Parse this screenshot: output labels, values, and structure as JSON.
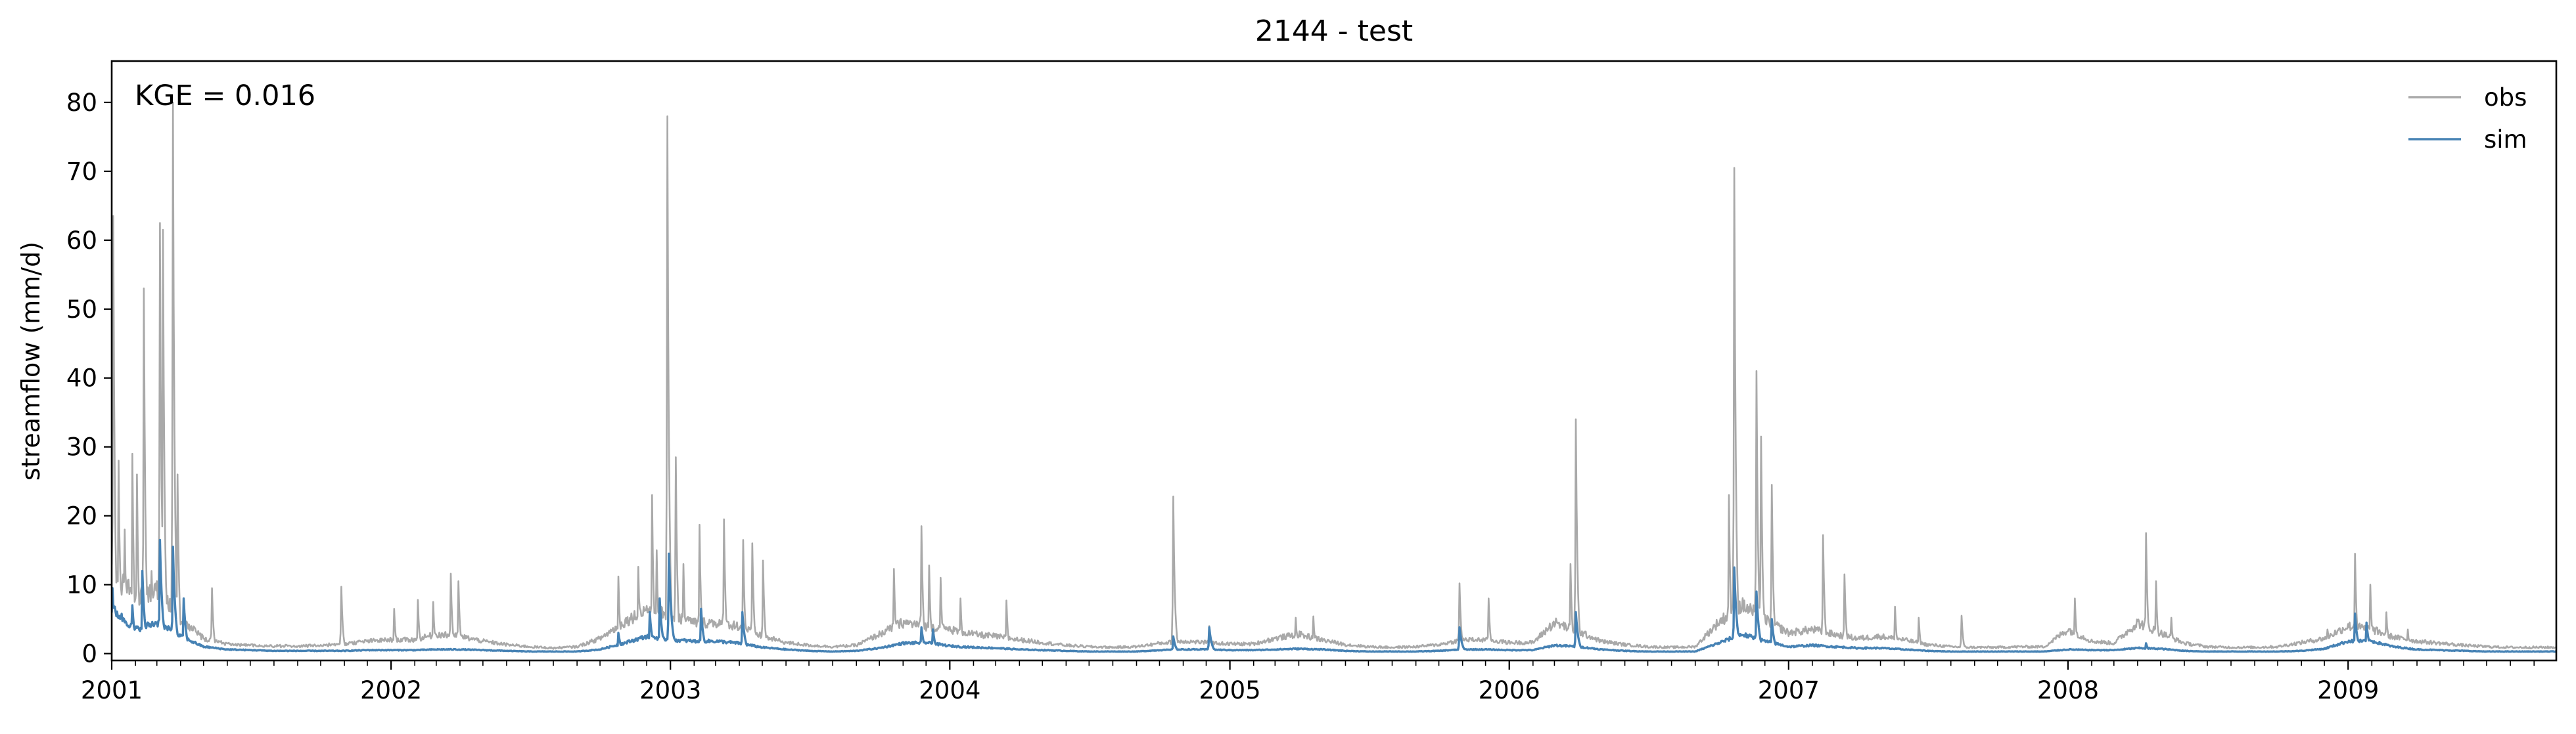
{
  "chart_data": {
    "type": "line",
    "title": "2144 - test",
    "xlabel": "",
    "ylabel": "streamflow (mm/d)",
    "annotation": "KGE = 0.016",
    "xlim": [
      "2001-01-01",
      "2009-09-30"
    ],
    "ylim": [
      -1,
      86
    ],
    "yticks": [
      0,
      10,
      20,
      30,
      40,
      50,
      60,
      70,
      80
    ],
    "xticks": [
      "2001",
      "2002",
      "2003",
      "2004",
      "2005",
      "2006",
      "2007",
      "2008",
      "2009"
    ],
    "grid": false,
    "legend_position": "top-right",
    "colors": {
      "obs": "#a9a9a9",
      "sim": "#4682b4"
    },
    "base_obs": [
      [
        "2001-01-01",
        12
      ],
      [
        "2001-02-01",
        8
      ],
      [
        "2001-03-01",
        9
      ],
      [
        "2001-04-01",
        5
      ],
      [
        "2001-05-01",
        2.2
      ],
      [
        "2001-06-01",
        1.4
      ],
      [
        "2001-07-01",
        1.2
      ],
      [
        "2001-08-01",
        1.1
      ],
      [
        "2001-09-01",
        1.1
      ],
      [
        "2001-10-01",
        1.2
      ],
      [
        "2001-11-01",
        1.4
      ],
      [
        "2001-12-01",
        1.8
      ],
      [
        "2002-01-01",
        2.0
      ],
      [
        "2002-02-01",
        2.0
      ],
      [
        "2002-03-01",
        2.8
      ],
      [
        "2002-04-01",
        2.5
      ],
      [
        "2002-05-01",
        1.8
      ],
      [
        "2002-06-01",
        1.3
      ],
      [
        "2002-07-01",
        1.0
      ],
      [
        "2002-08-01",
        0.8
      ],
      [
        "2002-09-01",
        1.0
      ],
      [
        "2002-10-01",
        2.2
      ],
      [
        "2002-11-01",
        4.5
      ],
      [
        "2002-12-01",
        6.5
      ],
      [
        "2003-01-01",
        5.5
      ],
      [
        "2003-02-01",
        4.5
      ],
      [
        "2003-03-01",
        4.5
      ],
      [
        "2003-04-01",
        4.0
      ],
      [
        "2003-05-01",
        2.5
      ],
      [
        "2003-06-01",
        1.6
      ],
      [
        "2003-07-01",
        1.2
      ],
      [
        "2003-08-01",
        1.0
      ],
      [
        "2003-09-01",
        1.2
      ],
      [
        "2003-10-01",
        2.8
      ],
      [
        "2003-11-01",
        4.5
      ],
      [
        "2003-12-01",
        4.0
      ],
      [
        "2004-01-01",
        3.5
      ],
      [
        "2004-02-01",
        2.8
      ],
      [
        "2004-03-01",
        2.5
      ],
      [
        "2004-04-01",
        2.0
      ],
      [
        "2004-05-01",
        1.6
      ],
      [
        "2004-06-01",
        1.2
      ],
      [
        "2004-07-01",
        1.0
      ],
      [
        "2004-08-01",
        0.9
      ],
      [
        "2004-09-01",
        1.0
      ],
      [
        "2004-10-01",
        1.5
      ],
      [
        "2004-11-01",
        1.8
      ],
      [
        "2004-12-01",
        1.6
      ],
      [
        "2005-01-01",
        1.4
      ],
      [
        "2005-02-01",
        1.4
      ],
      [
        "2005-03-01",
        2.2
      ],
      [
        "2005-04-01",
        2.8
      ],
      [
        "2005-05-01",
        2.0
      ],
      [
        "2005-06-01",
        1.3
      ],
      [
        "2005-07-01",
        1.0
      ],
      [
        "2005-08-01",
        0.9
      ],
      [
        "2005-09-01",
        1.0
      ],
      [
        "2005-10-01",
        1.3
      ],
      [
        "2005-11-01",
        2.0
      ],
      [
        "2005-12-01",
        2.0
      ],
      [
        "2006-01-01",
        1.6
      ],
      [
        "2006-02-01",
        1.6
      ],
      [
        "2006-03-01",
        4.5
      ],
      [
        "2006-04-01",
        3.2
      ],
      [
        "2006-05-01",
        1.8
      ],
      [
        "2006-06-01",
        1.3
      ],
      [
        "2006-07-01",
        1.0
      ],
      [
        "2006-08-01",
        0.9
      ],
      [
        "2006-09-01",
        1.0
      ],
      [
        "2006-10-01",
        4.5
      ],
      [
        "2006-11-01",
        7.0
      ],
      [
        "2006-12-01",
        5.0
      ],
      [
        "2007-01-01",
        3.0
      ],
      [
        "2007-02-01",
        3.5
      ],
      [
        "2007-03-01",
        2.8
      ],
      [
        "2007-04-01",
        2.2
      ],
      [
        "2007-05-01",
        2.5
      ],
      [
        "2007-06-01",
        2.0
      ],
      [
        "2007-07-01",
        1.3
      ],
      [
        "2007-08-01",
        1.0
      ],
      [
        "2007-09-01",
        0.9
      ],
      [
        "2007-10-01",
        0.9
      ],
      [
        "2007-11-01",
        1.0
      ],
      [
        "2007-12-01",
        1.0
      ],
      [
        "2008-01-01",
        3.5
      ],
      [
        "2008-02-01",
        1.8
      ],
      [
        "2008-03-01",
        1.5
      ],
      [
        "2008-04-01",
        4.5
      ],
      [
        "2008-05-01",
        3.0
      ],
      [
        "2008-06-01",
        1.5
      ],
      [
        "2008-07-01",
        1.0
      ],
      [
        "2008-08-01",
        0.9
      ],
      [
        "2008-09-01",
        0.9
      ],
      [
        "2008-10-01",
        1.0
      ],
      [
        "2008-11-01",
        1.6
      ],
      [
        "2008-12-01",
        2.2
      ],
      [
        "2009-01-01",
        4.0
      ],
      [
        "2009-02-01",
        3.5
      ],
      [
        "2009-03-01",
        2.4
      ],
      [
        "2009-04-01",
        1.8
      ],
      [
        "2009-05-01",
        1.5
      ],
      [
        "2009-06-01",
        1.2
      ],
      [
        "2009-07-01",
        1.0
      ],
      [
        "2009-08-01",
        0.9
      ],
      [
        "2009-09-30",
        0.9
      ]
    ],
    "base_sim": [
      [
        "2001-01-01",
        6.5
      ],
      [
        "2001-02-01",
        3.5
      ],
      [
        "2001-03-01",
        4.5
      ],
      [
        "2001-04-01",
        2.5
      ],
      [
        "2001-05-01",
        1.0
      ],
      [
        "2001-06-01",
        0.6
      ],
      [
        "2001-07-01",
        0.5
      ],
      [
        "2001-08-01",
        0.4
      ],
      [
        "2001-09-01",
        0.4
      ],
      [
        "2001-10-01",
        0.4
      ],
      [
        "2001-11-01",
        0.4
      ],
      [
        "2001-12-01",
        0.5
      ],
      [
        "2002-01-01",
        0.5
      ],
      [
        "2002-02-01",
        0.5
      ],
      [
        "2002-03-01",
        0.6
      ],
      [
        "2002-04-01",
        0.6
      ],
      [
        "2002-05-01",
        0.5
      ],
      [
        "2002-06-01",
        0.4
      ],
      [
        "2002-07-01",
        0.3
      ],
      [
        "2002-08-01",
        0.3
      ],
      [
        "2002-09-01",
        0.3
      ],
      [
        "2002-10-01",
        0.6
      ],
      [
        "2002-11-01",
        1.5
      ],
      [
        "2002-12-01",
        2.5
      ],
      [
        "2003-01-01",
        2.0
      ],
      [
        "2003-02-01",
        1.8
      ],
      [
        "2003-03-01",
        1.8
      ],
      [
        "2003-04-01",
        1.5
      ],
      [
        "2003-05-01",
        0.9
      ],
      [
        "2003-06-01",
        0.6
      ],
      [
        "2003-07-01",
        0.4
      ],
      [
        "2003-08-01",
        0.3
      ],
      [
        "2003-09-01",
        0.4
      ],
      [
        "2003-10-01",
        0.8
      ],
      [
        "2003-11-01",
        1.5
      ],
      [
        "2003-12-01",
        1.6
      ],
      [
        "2004-01-01",
        1.1
      ],
      [
        "2004-02-01",
        0.9
      ],
      [
        "2004-03-01",
        0.8
      ],
      [
        "2004-04-01",
        0.6
      ],
      [
        "2004-05-01",
        0.5
      ],
      [
        "2004-06-01",
        0.4
      ],
      [
        "2004-07-01",
        0.3
      ],
      [
        "2004-08-01",
        0.3
      ],
      [
        "2004-09-01",
        0.3
      ],
      [
        "2004-10-01",
        0.5
      ],
      [
        "2004-11-01",
        0.6
      ],
      [
        "2004-12-01",
        0.6
      ],
      [
        "2005-01-01",
        0.5
      ],
      [
        "2005-02-01",
        0.5
      ],
      [
        "2005-03-01",
        0.6
      ],
      [
        "2005-04-01",
        0.7
      ],
      [
        "2005-05-01",
        0.6
      ],
      [
        "2005-06-01",
        0.4
      ],
      [
        "2005-07-01",
        0.3
      ],
      [
        "2005-08-01",
        0.3
      ],
      [
        "2005-09-01",
        0.3
      ],
      [
        "2005-10-01",
        0.4
      ],
      [
        "2005-11-01",
        0.6
      ],
      [
        "2005-12-01",
        0.6
      ],
      [
        "2006-01-01",
        0.5
      ],
      [
        "2006-02-01",
        0.5
      ],
      [
        "2006-03-01",
        1.2
      ],
      [
        "2006-04-01",
        1.0
      ],
      [
        "2006-05-01",
        0.6
      ],
      [
        "2006-06-01",
        0.4
      ],
      [
        "2006-07-01",
        0.3
      ],
      [
        "2006-08-01",
        0.3
      ],
      [
        "2006-09-01",
        0.3
      ],
      [
        "2006-10-01",
        1.5
      ],
      [
        "2006-11-01",
        2.8
      ],
      [
        "2006-12-01",
        1.8
      ],
      [
        "2007-01-01",
        1.0
      ],
      [
        "2007-02-01",
        1.2
      ],
      [
        "2007-03-01",
        1.0
      ],
      [
        "2007-04-01",
        0.8
      ],
      [
        "2007-05-01",
        0.8
      ],
      [
        "2007-06-01",
        0.6
      ],
      [
        "2007-07-01",
        0.4
      ],
      [
        "2007-08-01",
        0.3
      ],
      [
        "2007-09-01",
        0.3
      ],
      [
        "2007-10-01",
        0.3
      ],
      [
        "2007-11-01",
        0.3
      ],
      [
        "2007-12-01",
        0.3
      ],
      [
        "2008-01-01",
        0.6
      ],
      [
        "2008-02-01",
        0.5
      ],
      [
        "2008-03-01",
        0.5
      ],
      [
        "2008-04-01",
        0.8
      ],
      [
        "2008-05-01",
        0.7
      ],
      [
        "2008-06-01",
        0.4
      ],
      [
        "2008-07-01",
        0.3
      ],
      [
        "2008-08-01",
        0.3
      ],
      [
        "2008-09-01",
        0.3
      ],
      [
        "2008-10-01",
        0.3
      ],
      [
        "2008-11-01",
        0.4
      ],
      [
        "2008-12-01",
        0.7
      ],
      [
        "2009-01-01",
        1.8
      ],
      [
        "2009-02-01",
        1.8
      ],
      [
        "2009-03-01",
        1.0
      ],
      [
        "2009-04-01",
        0.6
      ],
      [
        "2009-05-01",
        0.5
      ],
      [
        "2009-06-01",
        0.4
      ],
      [
        "2009-07-01",
        0.3
      ],
      [
        "2009-08-01",
        0.3
      ],
      [
        "2009-09-30",
        0.3
      ]
    ],
    "obs_peaks": [
      [
        "2001-01-03",
        63.5
      ],
      [
        "2001-01-10",
        28
      ],
      [
        "2001-01-18",
        18
      ],
      [
        "2001-01-28",
        29
      ],
      [
        "2001-02-03",
        26
      ],
      [
        "2001-02-12",
        53
      ],
      [
        "2001-02-22",
        12
      ],
      [
        "2001-03-05",
        62.5
      ],
      [
        "2001-03-09",
        61.5
      ],
      [
        "2001-03-22",
        80
      ],
      [
        "2001-03-28",
        26
      ],
      [
        "2001-05-12",
        9.5
      ],
      [
        "2001-10-28",
        9.7
      ],
      [
        "2002-01-05",
        6.5
      ],
      [
        "2002-02-05",
        7.8
      ],
      [
        "2002-02-25",
        7.5
      ],
      [
        "2002-03-20",
        11.6
      ],
      [
        "2002-03-30",
        10.5
      ],
      [
        "2002-10-25",
        11.2
      ],
      [
        "2002-11-20",
        12.6
      ],
      [
        "2002-12-08",
        23
      ],
      [
        "2002-12-14",
        15
      ],
      [
        "2002-12-28",
        78
      ],
      [
        "2003-01-08",
        28.5
      ],
      [
        "2003-01-18",
        13
      ],
      [
        "2003-02-08",
        18.7
      ],
      [
        "2003-03-12",
        19.5
      ],
      [
        "2003-04-06",
        16.5
      ],
      [
        "2003-04-18",
        16
      ],
      [
        "2003-05-02",
        13.5
      ],
      [
        "2003-10-20",
        12.3
      ],
      [
        "2003-11-25",
        18.5
      ],
      [
        "2003-12-05",
        12.8
      ],
      [
        "2003-12-20",
        11
      ],
      [
        "2004-01-15",
        8
      ],
      [
        "2004-03-15",
        7.7
      ],
      [
        "2004-10-19",
        22.8
      ],
      [
        "2004-12-05",
        4
      ],
      [
        "2005-03-28",
        5.2
      ],
      [
        "2005-04-20",
        5.4
      ],
      [
        "2005-10-28",
        10.2
      ],
      [
        "2005-12-05",
        8
      ],
      [
        "2006-03-22",
        13
      ],
      [
        "2006-03-29",
        34
      ],
      [
        "2006-10-15",
        23
      ],
      [
        "2006-10-22",
        70.5
      ],
      [
        "2006-11-20",
        41
      ],
      [
        "2006-11-26",
        31.5
      ],
      [
        "2006-12-10",
        24.5
      ],
      [
        "2007-02-15",
        17.2
      ],
      [
        "2007-03-15",
        11.5
      ],
      [
        "2007-05-20",
        6.8
      ],
      [
        "2007-06-20",
        5.2
      ],
      [
        "2007-08-15",
        5.5
      ],
      [
        "2008-01-10",
        8
      ],
      [
        "2008-04-12",
        17.5
      ],
      [
        "2008-04-25",
        10.5
      ],
      [
        "2008-05-15",
        5.2
      ],
      [
        "2008-12-05",
        3.5
      ],
      [
        "2009-01-10",
        14.5
      ],
      [
        "2009-01-30",
        10
      ],
      [
        "2009-02-20",
        6
      ],
      [
        "2009-03-20",
        3.5
      ]
    ],
    "sim_peaks": [
      [
        "2001-01-02",
        9.5
      ],
      [
        "2001-01-28",
        7
      ],
      [
        "2001-02-10",
        12
      ],
      [
        "2001-03-05",
        16.5
      ],
      [
        "2001-03-22",
        15.5
      ],
      [
        "2001-04-05",
        8
      ],
      [
        "2002-10-25",
        3
      ],
      [
        "2002-12-05",
        6
      ],
      [
        "2002-12-18",
        8
      ],
      [
        "2002-12-30",
        14.5
      ],
      [
        "2003-02-10",
        6.5
      ],
      [
        "2003-04-05",
        6
      ],
      [
        "2003-11-25",
        3.8
      ],
      [
        "2003-12-10",
        3.5
      ],
      [
        "2004-10-19",
        2.5
      ],
      [
        "2004-12-05",
        3.8
      ],
      [
        "2005-10-28",
        3.8
      ],
      [
        "2006-03-29",
        6
      ],
      [
        "2006-10-22",
        12.5
      ],
      [
        "2006-11-20",
        9
      ],
      [
        "2006-12-10",
        5
      ],
      [
        "2008-04-12",
        1.5
      ],
      [
        "2009-01-10",
        5.8
      ],
      [
        "2009-01-25",
        4.5
      ]
    ],
    "series": [
      {
        "name": "obs",
        "color": "#a9a9a9"
      },
      {
        "name": "sim",
        "color": "#4682b4"
      }
    ]
  }
}
